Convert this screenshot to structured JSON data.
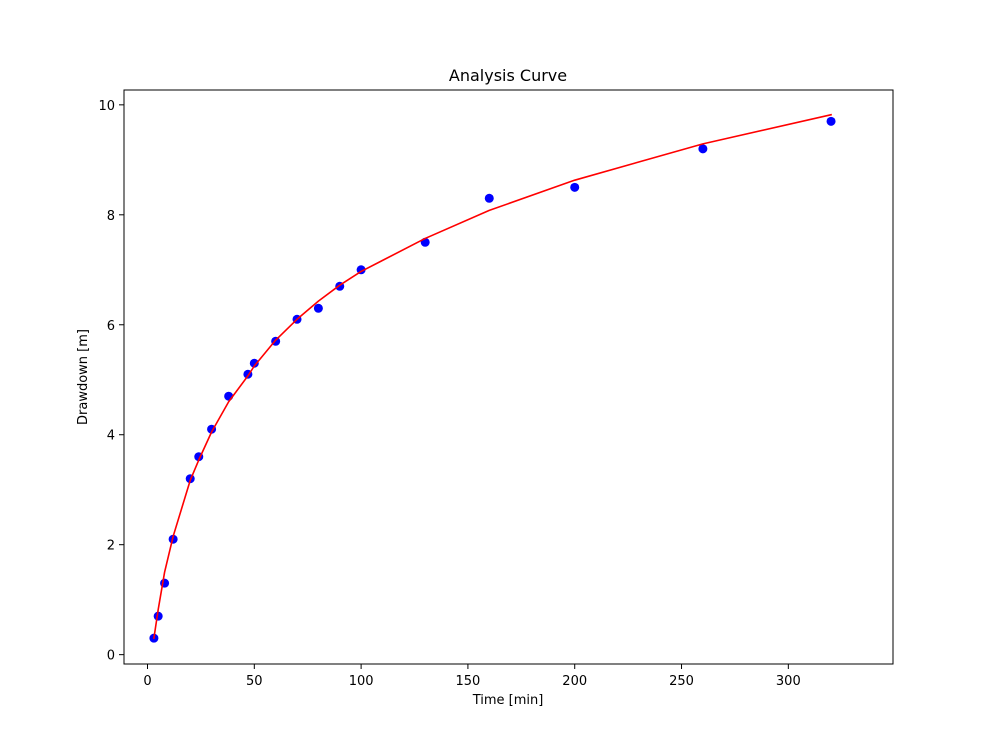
{
  "chart_data": {
    "type": "scatter",
    "title": "Analysis Curve",
    "xlabel": "Time [min]",
    "ylabel": "Drawdown [m]",
    "xlim": [
      -11,
      349
    ],
    "ylim": [
      -0.17,
      10.27
    ],
    "xticks": [
      0,
      50,
      100,
      150,
      200,
      250,
      300
    ],
    "yticks": [
      0,
      2,
      4,
      6,
      8,
      10
    ],
    "grid": false,
    "series": [
      {
        "kind": "points",
        "color": "#0000ff",
        "x": [
          3,
          5,
          8,
          12,
          20,
          24,
          30,
          38,
          47,
          50,
          60,
          70,
          80,
          90,
          100,
          130,
          160,
          200,
          260,
          320
        ],
        "y": [
          0.3,
          0.7,
          1.3,
          2.1,
          3.2,
          3.6,
          4.1,
          4.7,
          5.1,
          5.3,
          5.7,
          6.1,
          6.3,
          6.7,
          7.0,
          7.5,
          8.3,
          8.5,
          9.2,
          9.7
        ]
      },
      {
        "kind": "line",
        "color": "#ff0000",
        "x": [
          3,
          5,
          8,
          12,
          20,
          24,
          30,
          38,
          47,
          50,
          60,
          70,
          80,
          90,
          100,
          130,
          160,
          200,
          260,
          320
        ],
        "y": [
          0.3,
          0.82,
          1.5,
          2.15,
          3.17,
          3.54,
          4.05,
          4.6,
          5.07,
          5.25,
          5.72,
          6.1,
          6.43,
          6.72,
          6.97,
          7.57,
          8.08,
          8.63,
          9.29,
          9.82
        ]
      }
    ]
  }
}
